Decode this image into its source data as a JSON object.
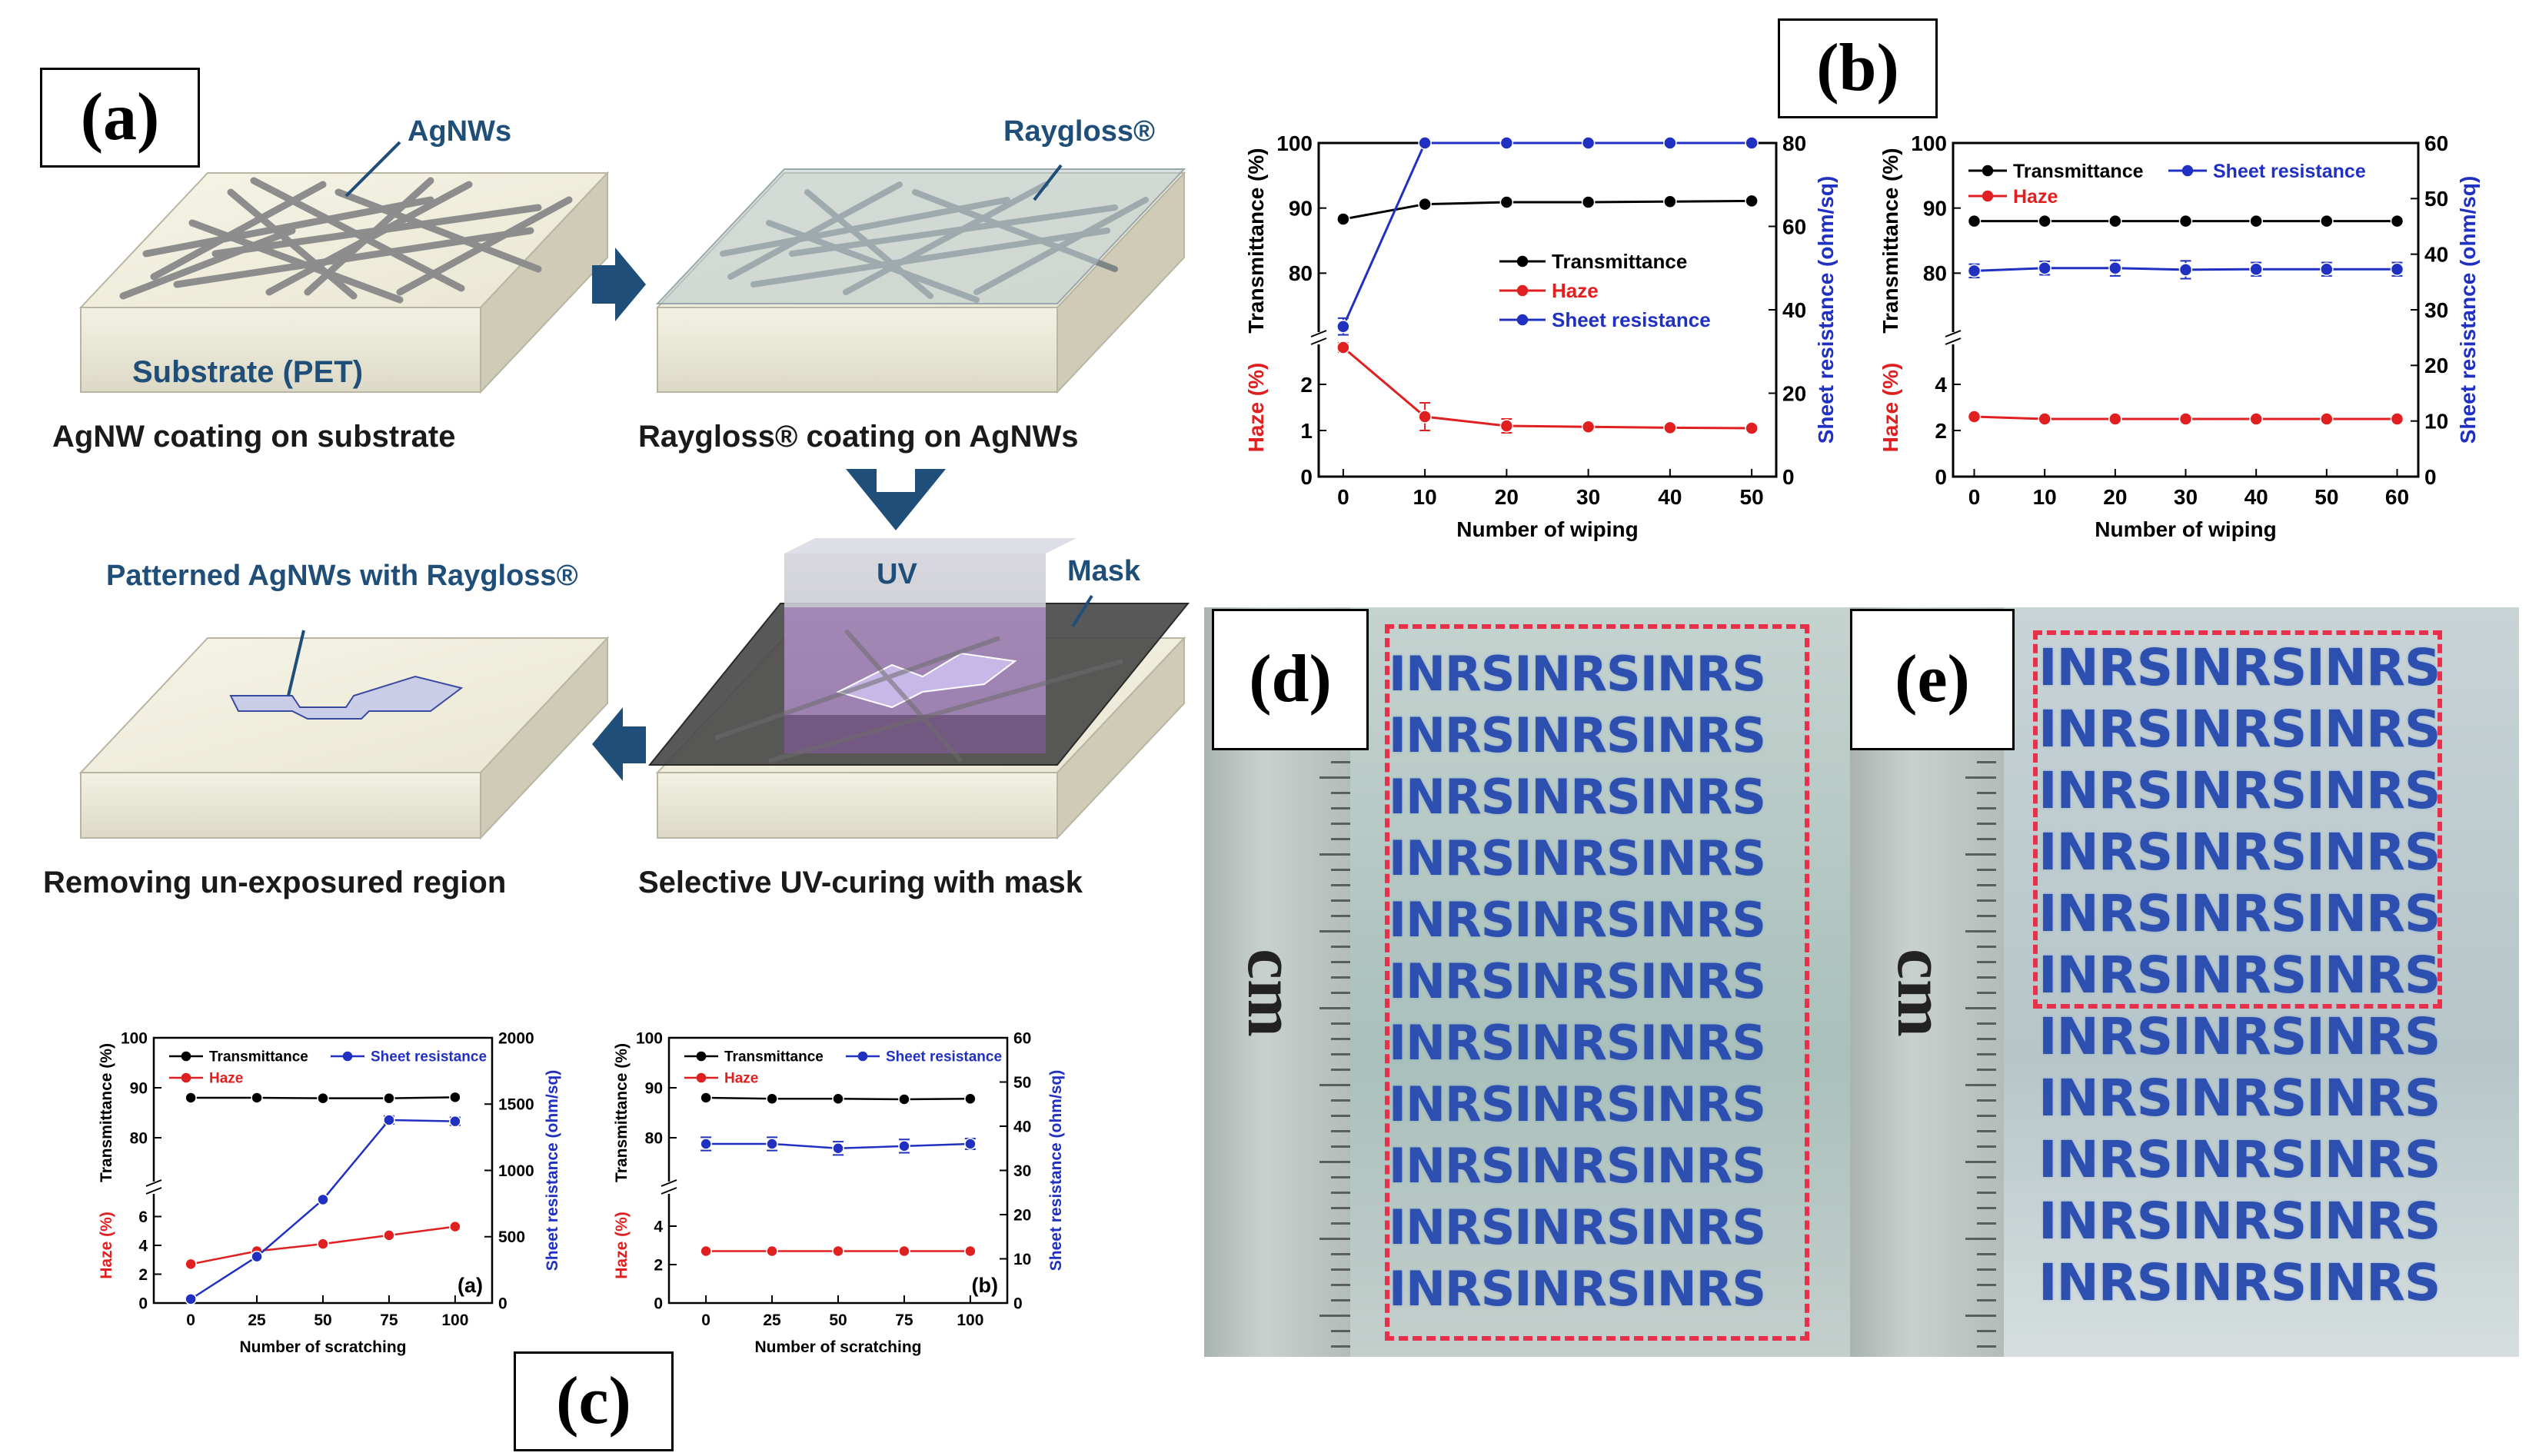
{
  "panels": {
    "a": {
      "label": "(a)",
      "steps": [
        {
          "title": "AgNW coating on substrate",
          "tags": [
            "AgNWs",
            "Substrate (PET)"
          ]
        },
        {
          "title": "Raygloss® coating on AgNWs",
          "tags": [
            "Raygloss®"
          ]
        },
        {
          "title": "Selective UV-curing with mask",
          "tags": [
            "UV",
            "Mask"
          ]
        },
        {
          "title": "Removing un-exposured region",
          "tags": [
            "Patterned AgNWs with Raygloss®"
          ]
        }
      ]
    },
    "b": {
      "label": "(b)"
    },
    "c": {
      "label": "(c)"
    },
    "d": {
      "label": "(d)",
      "unit": "cm",
      "pattern_text": "INRSINRSINRS",
      "rows": 11
    },
    "e": {
      "label": "(e)",
      "unit": "cm",
      "pattern_text": "INRSINRSINRS",
      "rows": 11
    }
  },
  "colors": {
    "navy": "#1f4e79",
    "transmittance": "#000000",
    "haze": "#e02020",
    "sheet": "#2030c0",
    "pattern": "#2d4fb0",
    "dash": "#e8304a"
  },
  "chart_data": [
    {
      "id": "b-left",
      "type": "line",
      "xlabel": "Number of wiping",
      "x": [
        0,
        10,
        20,
        30,
        40,
        50
      ],
      "xlim": [
        -3,
        53
      ],
      "ylabel_top": "Transmittance (%)",
      "ylabel_bottom": "Haze (%)",
      "y2label": "Sheet resistance (ohm/sq)",
      "ytop_lim": [
        70,
        100
      ],
      "ytop_ticks": [
        80,
        90,
        100
      ],
      "ybot_lim": [
        0,
        3
      ],
      "ybot_ticks": [
        0,
        1,
        2
      ],
      "y2lim": [
        0,
        80
      ],
      "y2ticks": [
        0,
        20,
        40,
        60,
        80
      ],
      "legend": "center-right",
      "series": [
        {
          "name": "Transmittance",
          "axis": "top",
          "values": [
            88.3,
            90.6,
            90.9,
            90.9,
            91.0,
            91.1
          ]
        },
        {
          "name": "Haze",
          "axis": "bottom",
          "values": [
            2.8,
            1.3,
            1.1,
            1.08,
            1.06,
            1.05
          ],
          "err": [
            0.1,
            0.3,
            0.15,
            0.08,
            0.06,
            0.06
          ]
        },
        {
          "name": "Sheet resistance",
          "axis": "right",
          "values": [
            36,
            80,
            80,
            80,
            80,
            80
          ],
          "err": [
            2,
            0,
            0,
            0,
            0,
            0
          ]
        }
      ]
    },
    {
      "id": "b-right",
      "type": "line",
      "xlabel": "Number of wiping",
      "x": [
        0,
        10,
        20,
        30,
        40,
        50,
        60
      ],
      "xlim": [
        -3,
        63
      ],
      "ylabel_top": "Transmittance (%)",
      "ylabel_bottom": "Haze (%)",
      "y2label": "Sheet resistance (ohm/sq)",
      "ytop_lim": [
        70,
        100
      ],
      "ytop_ticks": [
        80,
        90,
        100
      ],
      "ybot_lim": [
        0,
        6
      ],
      "ybot_ticks": [
        0,
        2,
        4
      ],
      "y2lim": [
        0,
        60
      ],
      "y2ticks": [
        0,
        10,
        20,
        30,
        40,
        50,
        60
      ],
      "legend": "top",
      "series": [
        {
          "name": "Transmittance",
          "axis": "top",
          "values": [
            88.0,
            88.0,
            88.0,
            88.0,
            88.0,
            88.0,
            88.0
          ]
        },
        {
          "name": "Haze",
          "axis": "bottom",
          "values": [
            2.6,
            2.5,
            2.5,
            2.5,
            2.5,
            2.5,
            2.5
          ]
        },
        {
          "name": "Sheet resistance",
          "axis": "right",
          "values": [
            37.0,
            37.5,
            37.5,
            37.2,
            37.3,
            37.3,
            37.3
          ],
          "err": [
            1.2,
            1.2,
            1.4,
            1.6,
            1.2,
            1.2,
            1.2
          ]
        }
      ]
    },
    {
      "id": "c-a",
      "type": "line",
      "xlabel": "Number of scratching",
      "tag": "(a)",
      "x": [
        0,
        25,
        50,
        75,
        100
      ],
      "xlim": [
        -14,
        114
      ],
      "ylabel_top": "Transmittance (%)",
      "ylabel_bottom": "Haze (%)",
      "y2label": "Sheet resistance (ohm/sq)",
      "ytop_lim": [
        70,
        100
      ],
      "ytop_ticks": [
        80,
        90,
        100
      ],
      "ybot_lim": [
        0,
        8
      ],
      "ybot_ticks": [
        0,
        2,
        4,
        6
      ],
      "y2lim": [
        0,
        2000
      ],
      "y2ticks": [
        0,
        500,
        1000,
        1500,
        2000
      ],
      "legend": "top",
      "series": [
        {
          "name": "Transmittance",
          "axis": "top",
          "values": [
            88.0,
            88.0,
            87.9,
            87.9,
            88.1
          ]
        },
        {
          "name": "Haze",
          "axis": "bottom",
          "values": [
            2.7,
            3.6,
            4.1,
            4.7,
            5.3
          ]
        },
        {
          "name": "Sheet resistance",
          "axis": "right",
          "values": [
            30,
            350,
            780,
            1380,
            1370
          ],
          "err": [
            0,
            0,
            0,
            30,
            30
          ]
        }
      ]
    },
    {
      "id": "c-b",
      "type": "line",
      "xlabel": "Number of scratching",
      "tag": "(b)",
      "x": [
        0,
        25,
        50,
        75,
        100
      ],
      "xlim": [
        -14,
        114
      ],
      "ylabel_top": "Transmittance (%)",
      "ylabel_bottom": "Haze (%)",
      "y2label": "Sheet resistance (ohm/sq)",
      "ytop_lim": [
        70,
        100
      ],
      "ytop_ticks": [
        80,
        90,
        100
      ],
      "ybot_lim": [
        0,
        6
      ],
      "ybot_ticks": [
        0,
        2,
        4
      ],
      "y2lim": [
        0,
        60
      ],
      "y2ticks": [
        0,
        10,
        20,
        30,
        40,
        50,
        60
      ],
      "legend": "top",
      "series": [
        {
          "name": "Transmittance",
          "axis": "top",
          "values": [
            88.0,
            87.8,
            87.8,
            87.7,
            87.8
          ]
        },
        {
          "name": "Haze",
          "axis": "bottom",
          "values": [
            2.7,
            2.7,
            2.7,
            2.7,
            2.7
          ]
        },
        {
          "name": "Sheet resistance",
          "axis": "right",
          "values": [
            36,
            36,
            35,
            35.5,
            36
          ],
          "err": [
            1.5,
            1.5,
            1.5,
            1.5,
            1.2
          ]
        }
      ]
    }
  ]
}
